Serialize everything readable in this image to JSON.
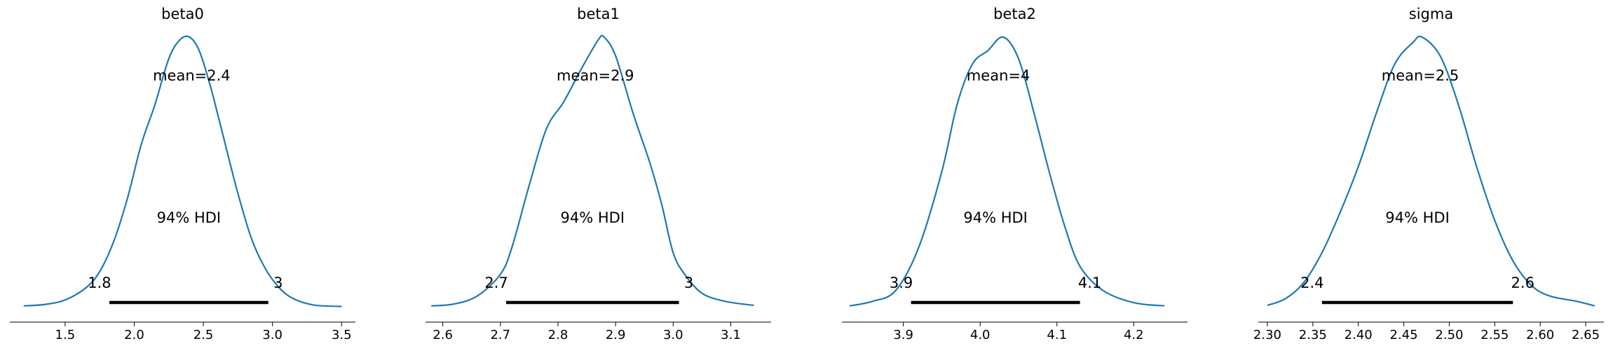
{
  "chart_data": [
    {
      "type": "line",
      "title": "beta0",
      "mean_label": "mean=2.4",
      "hdi_label": "94% HDI",
      "hdi": [
        1.82,
        2.97
      ],
      "hdi_labels": [
        "1.8",
        "3"
      ],
      "xlim": [
        1.1,
        3.6
      ],
      "xticks": [
        1.5,
        2.0,
        2.5,
        3.0,
        3.5
      ],
      "xtick_labels": [
        "1.5",
        "2.0",
        "2.5",
        "3.0",
        "3.5"
      ],
      "density": [
        [
          1.2,
          0.003
        ],
        [
          1.35,
          0.008
        ],
        [
          1.5,
          0.025
        ],
        [
          1.65,
          0.07
        ],
        [
          1.75,
          0.13
        ],
        [
          1.85,
          0.24
        ],
        [
          1.95,
          0.4
        ],
        [
          2.05,
          0.6
        ],
        [
          2.15,
          0.75
        ],
        [
          2.25,
          0.92
        ],
        [
          2.33,
          0.99
        ],
        [
          2.4,
          1.0
        ],
        [
          2.47,
          0.95
        ],
        [
          2.55,
          0.82
        ],
        [
          2.65,
          0.62
        ],
        [
          2.75,
          0.42
        ],
        [
          2.85,
          0.25
        ],
        [
          2.95,
          0.14
        ],
        [
          3.05,
          0.07
        ],
        [
          3.15,
          0.03
        ],
        [
          3.3,
          0.006
        ],
        [
          3.5,
          0.001
        ]
      ]
    },
    {
      "type": "line",
      "title": "beta1",
      "mean_label": "mean=2.9",
      "hdi_label": "94% HDI",
      "hdi": [
        2.71,
        3.01
      ],
      "hdi_labels": [
        "2.7",
        "3"
      ],
      "xlim": [
        2.57,
        3.17
      ],
      "xticks": [
        2.6,
        2.7,
        2.8,
        2.9,
        3.0,
        3.1
      ],
      "xtick_labels": [
        "2.6",
        "2.7",
        "2.8",
        "2.9",
        "3.0",
        "3.1"
      ],
      "density": [
        [
          2.58,
          0.003
        ],
        [
          2.62,
          0.01
        ],
        [
          2.66,
          0.04
        ],
        [
          2.7,
          0.12
        ],
        [
          2.72,
          0.22
        ],
        [
          2.75,
          0.45
        ],
        [
          2.78,
          0.66
        ],
        [
          2.81,
          0.76
        ],
        [
          2.84,
          0.88
        ],
        [
          2.87,
          0.99
        ],
        [
          2.88,
          1.0
        ],
        [
          2.9,
          0.93
        ],
        [
          2.93,
          0.72
        ],
        [
          2.96,
          0.53
        ],
        [
          2.98,
          0.38
        ],
        [
          3.0,
          0.2
        ],
        [
          3.02,
          0.12
        ],
        [
          3.05,
          0.05
        ],
        [
          3.09,
          0.02
        ],
        [
          3.14,
          0.005
        ]
      ]
    },
    {
      "type": "line",
      "title": "beta2",
      "mean_label": "mean=4",
      "hdi_label": "94% HDI",
      "hdi": [
        3.91,
        4.13
      ],
      "hdi_labels": [
        "3.9",
        "4.1"
      ],
      "xlim": [
        3.82,
        4.27
      ],
      "xticks": [
        3.9,
        4.0,
        4.1,
        4.2
      ],
      "xtick_labels": [
        "3.9",
        "4.0",
        "4.1",
        "4.2"
      ],
      "density": [
        [
          3.83,
          0.003
        ],
        [
          3.86,
          0.02
        ],
        [
          3.89,
          0.06
        ],
        [
          3.92,
          0.22
        ],
        [
          3.95,
          0.5
        ],
        [
          3.97,
          0.75
        ],
        [
          3.99,
          0.9
        ],
        [
          4.01,
          0.95
        ],
        [
          4.03,
          1.0
        ],
        [
          4.05,
          0.92
        ],
        [
          4.07,
          0.72
        ],
        [
          4.09,
          0.5
        ],
        [
          4.11,
          0.3
        ],
        [
          4.13,
          0.15
        ],
        [
          4.16,
          0.06
        ],
        [
          4.2,
          0.015
        ],
        [
          4.24,
          0.003
        ]
      ]
    },
    {
      "type": "line",
      "title": "sigma",
      "mean_label": "mean=2.5",
      "hdi_label": "94% HDI",
      "hdi": [
        2.36,
        2.57
      ],
      "hdi_labels": [
        "2.4",
        "2.6"
      ],
      "xlim": [
        2.29,
        2.67
      ],
      "xticks": [
        2.3,
        2.35,
        2.4,
        2.45,
        2.5,
        2.55,
        2.6,
        2.65
      ],
      "xtick_labels": [
        "2.30",
        "2.35",
        "2.40",
        "2.45",
        "2.50",
        "2.55",
        "2.60",
        "2.65"
      ],
      "density": [
        [
          2.3,
          0.005
        ],
        [
          2.32,
          0.03
        ],
        [
          2.34,
          0.09
        ],
        [
          2.36,
          0.2
        ],
        [
          2.38,
          0.35
        ],
        [
          2.4,
          0.52
        ],
        [
          2.42,
          0.72
        ],
        [
          2.44,
          0.9
        ],
        [
          2.46,
          0.98
        ],
        [
          2.47,
          1.0
        ],
        [
          2.49,
          0.93
        ],
        [
          2.51,
          0.75
        ],
        [
          2.53,
          0.52
        ],
        [
          2.55,
          0.32
        ],
        [
          2.57,
          0.17
        ],
        [
          2.59,
          0.08
        ],
        [
          2.61,
          0.04
        ],
        [
          2.64,
          0.02
        ],
        [
          2.66,
          0.003
        ]
      ]
    }
  ]
}
